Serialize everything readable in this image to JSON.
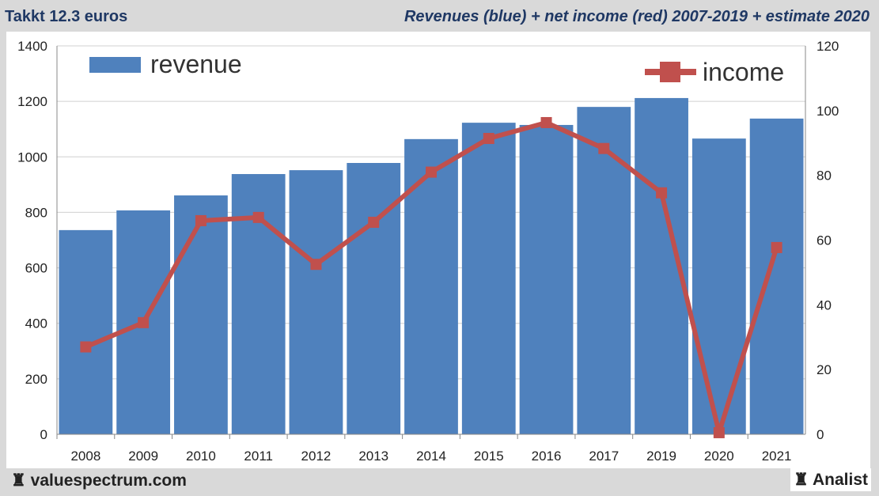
{
  "header": {
    "title_left": "Takkt 12.3 euros",
    "title_right": "Revenues (blue) + net income (red) 2007-2019 + estimate 2020"
  },
  "footer": {
    "left": "valuespectrum.com",
    "right": "Analist",
    "icon": "chess-rook-icon"
  },
  "chart_data": {
    "type": "bar",
    "categories": [
      "2008",
      "2009",
      "2010",
      "2011",
      "2012",
      "2013",
      "2014",
      "2015",
      "2016",
      "2017",
      "2019",
      "2020",
      "2021"
    ],
    "series": [
      {
        "name": "revenue",
        "type": "bar",
        "axis": "left",
        "color": "#4f81bd",
        "values": [
          736,
          807,
          861,
          938,
          952,
          978,
          1064,
          1123,
          1115,
          1180,
          1212,
          1066,
          1138
        ]
      },
      {
        "name": "income",
        "type": "line",
        "axis": "right",
        "color": "#c0504d",
        "values": [
          27,
          34.5,
          66,
          67,
          52.5,
          65.5,
          81,
          91.4,
          96.3,
          88.3,
          74.6,
          0.5,
          57.7
        ]
      }
    ],
    "ylim_left": [
      0,
      1400
    ],
    "yticks_left": [
      0,
      200,
      400,
      600,
      800,
      1000,
      1200,
      1400
    ],
    "ylim_right": [
      0,
      120
    ],
    "yticks_right": [
      0,
      20,
      40,
      60,
      80,
      100,
      120
    ],
    "grid": true,
    "legend": {
      "revenue": "top-left",
      "income": "top-right"
    }
  }
}
